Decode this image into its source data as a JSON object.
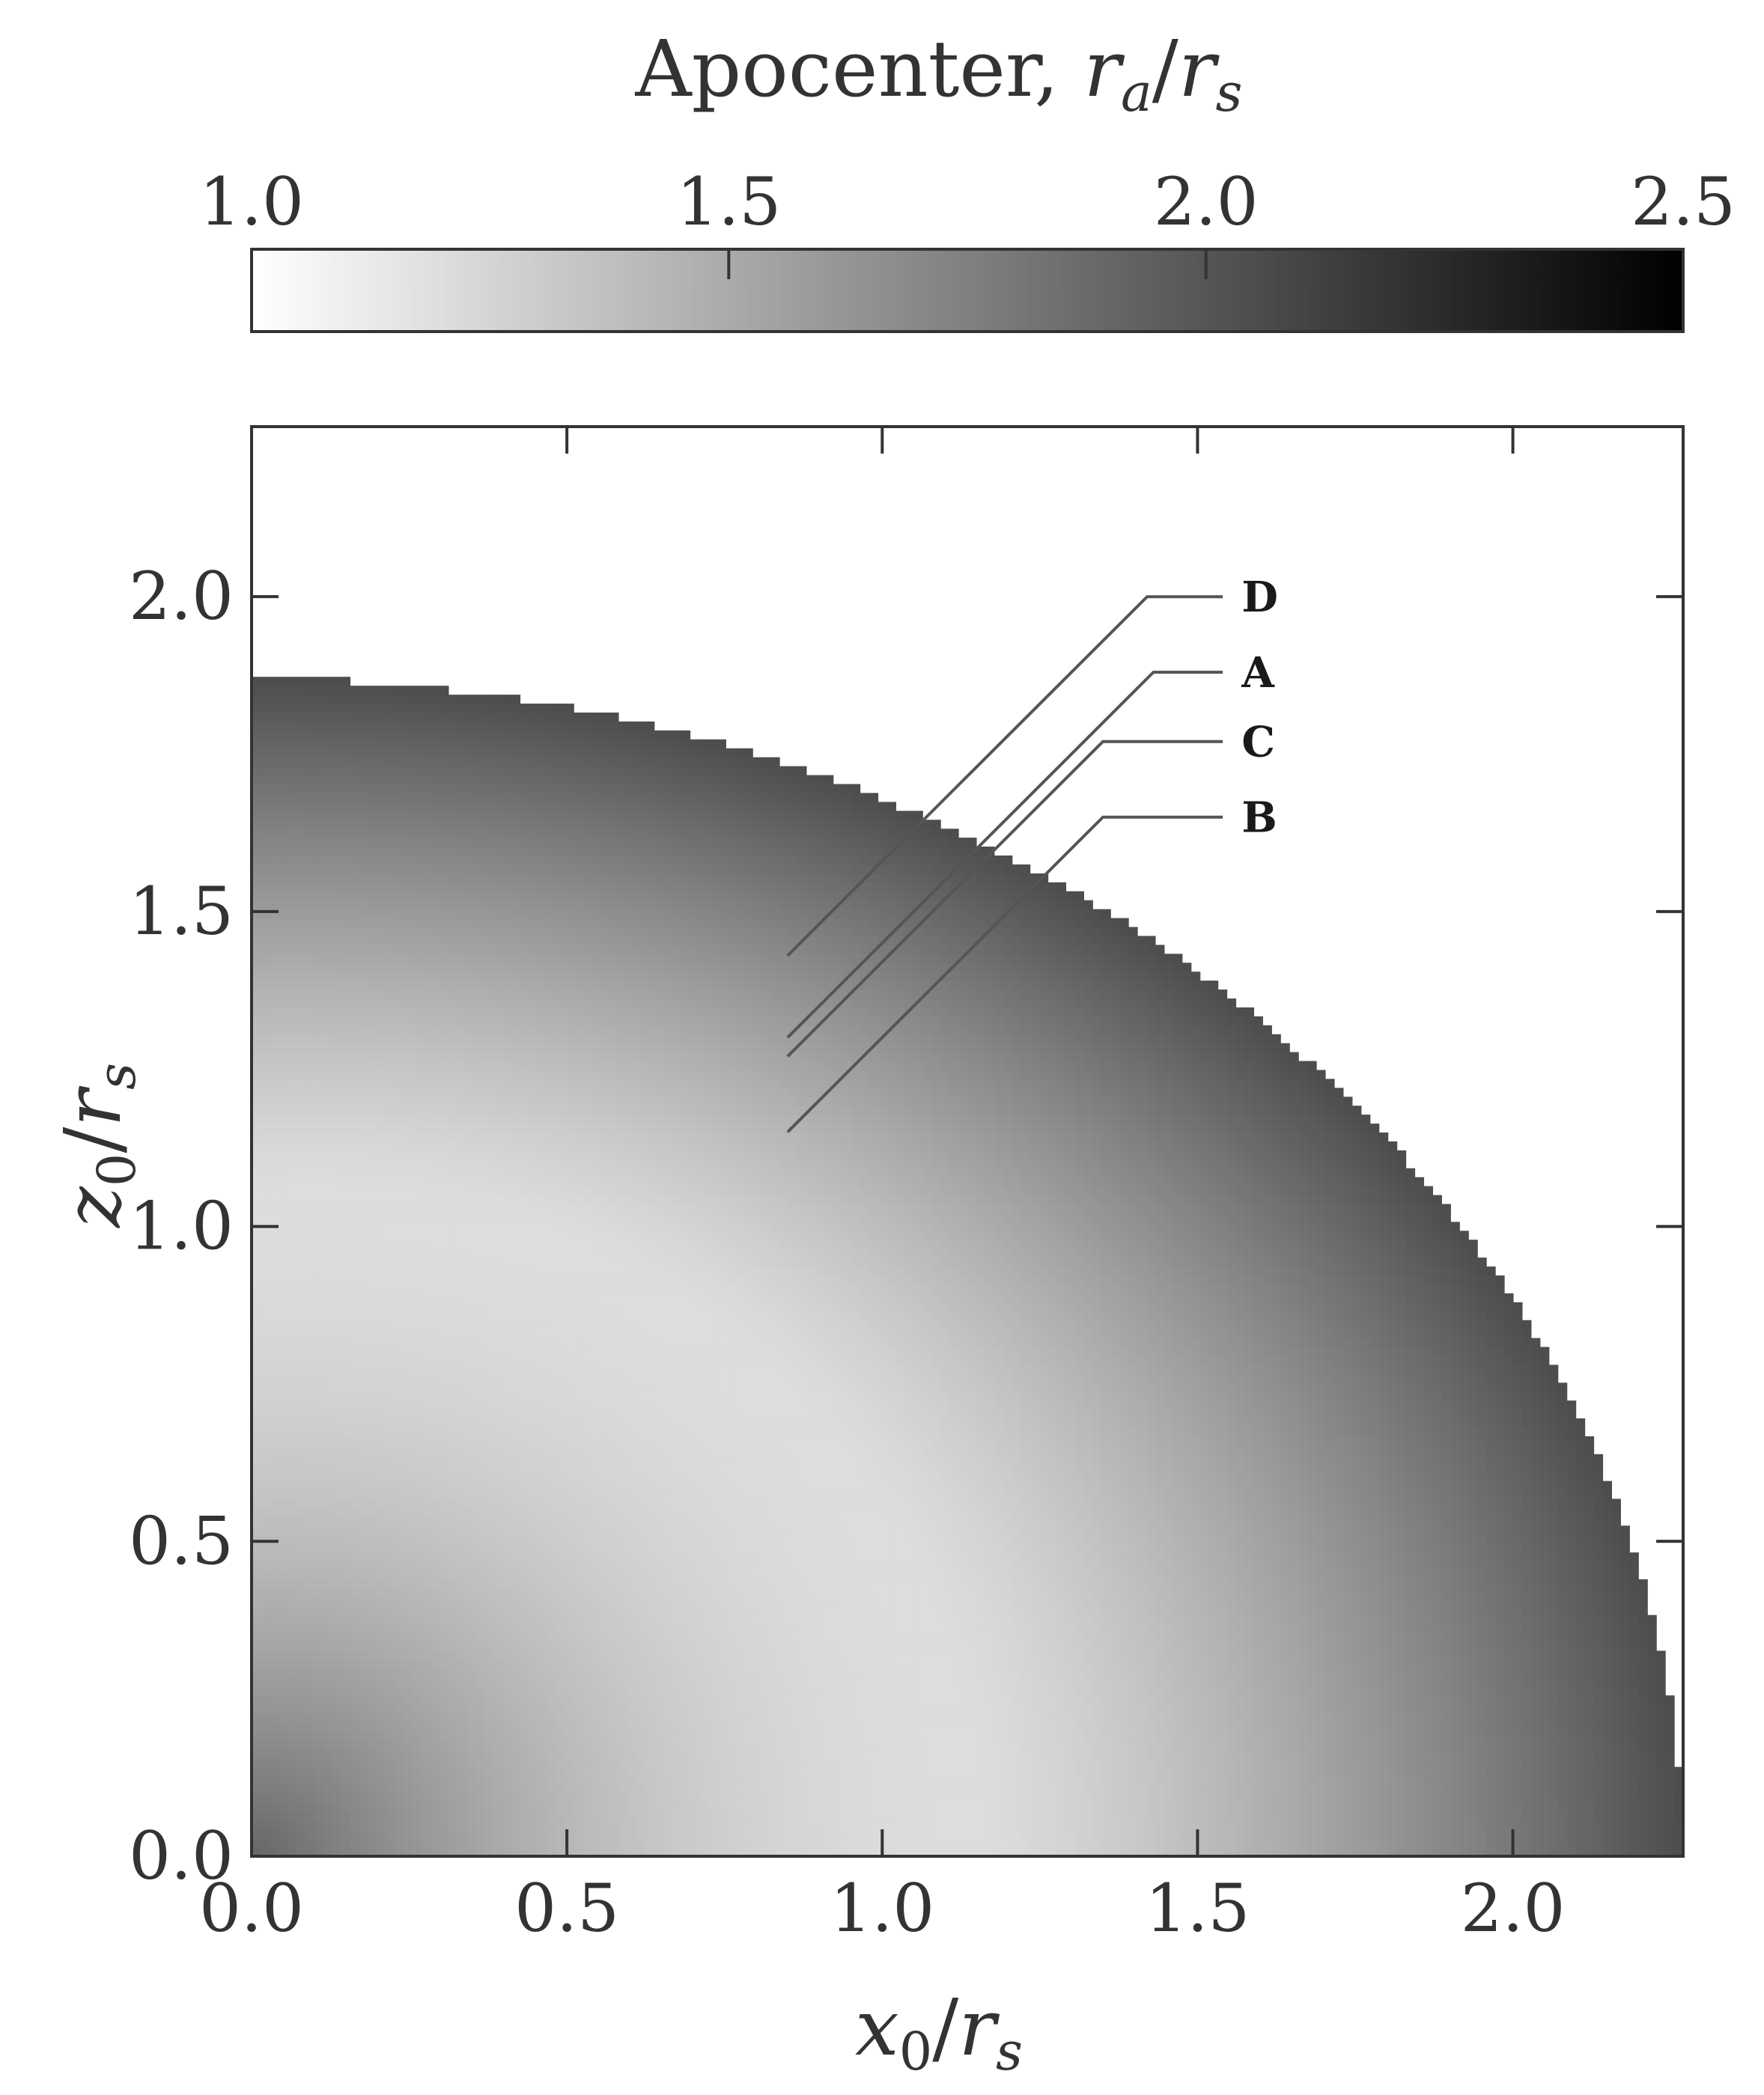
{
  "chart_data": {
    "type": "heatmap",
    "title": "",
    "colorbar": {
      "label_text": "Apocenter, ",
      "label_math_var": "r",
      "label_math_sub": "a",
      "label_math_sep": "/",
      "label_math_den": "r",
      "label_math_den_sub": "s",
      "range": [
        1.0,
        2.5
      ],
      "ticks": [
        1.0,
        1.5,
        2.0,
        2.5
      ],
      "tick_labels": [
        "1.0",
        "1.5",
        "2.0",
        "2.5"
      ],
      "colormap": "gray_r",
      "placement": "top"
    },
    "xaxis": {
      "label_var": "x",
      "label_sub": "0",
      "label_sep": "/",
      "label_den": "r",
      "label_den_sub": "s",
      "range": [
        0.0,
        2.27
      ],
      "ticks": [
        0.0,
        0.5,
        1.0,
        1.5,
        2.0
      ],
      "tick_labels": [
        "0.0",
        "0.5",
        "1.0",
        "1.5",
        "2.0"
      ]
    },
    "yaxis": {
      "label_var": "z",
      "label_sub": "0",
      "label_sep": "/",
      "label_den": "r",
      "label_den_sub": "s",
      "range": [
        0.0,
        2.27
      ],
      "ticks": [
        0.0,
        0.5,
        1.0,
        1.5,
        2.0
      ],
      "tick_labels": [
        "0.0",
        "0.5",
        "1.0",
        "1.5",
        "2.0"
      ]
    },
    "field": {
      "description_values": "apocenter ratio as function of initial position",
      "boundary_radius_on_z_axis": 1.87,
      "boundary_radius_on_x_axis": 2.27,
      "value_at_origin": 1.9,
      "minimum_value": 1.2,
      "minimum_at_radius": 1.15,
      "value_at_boundary": 2.05
    },
    "grid": false,
    "annotations": [
      {
        "label": "D",
        "from": [
          0.85,
          1.43
        ],
        "to": [
          1.42,
          2.0
        ],
        "label_at": [
          1.57,
          2.0
        ]
      },
      {
        "label": "A",
        "from": [
          0.85,
          1.3
        ],
        "to": [
          1.43,
          1.88
        ],
        "label_at": [
          1.57,
          1.88
        ]
      },
      {
        "label": "C",
        "from": [
          0.85,
          1.27
        ],
        "to": [
          1.35,
          1.77
        ],
        "label_at": [
          1.57,
          1.77
        ]
      },
      {
        "label": "B",
        "from": [
          0.85,
          1.15
        ],
        "to": [
          1.35,
          1.65
        ],
        "label_at": [
          1.57,
          1.65
        ]
      }
    ],
    "colors": {
      "axis": "#333333",
      "annotation_line": "#555555"
    }
  }
}
